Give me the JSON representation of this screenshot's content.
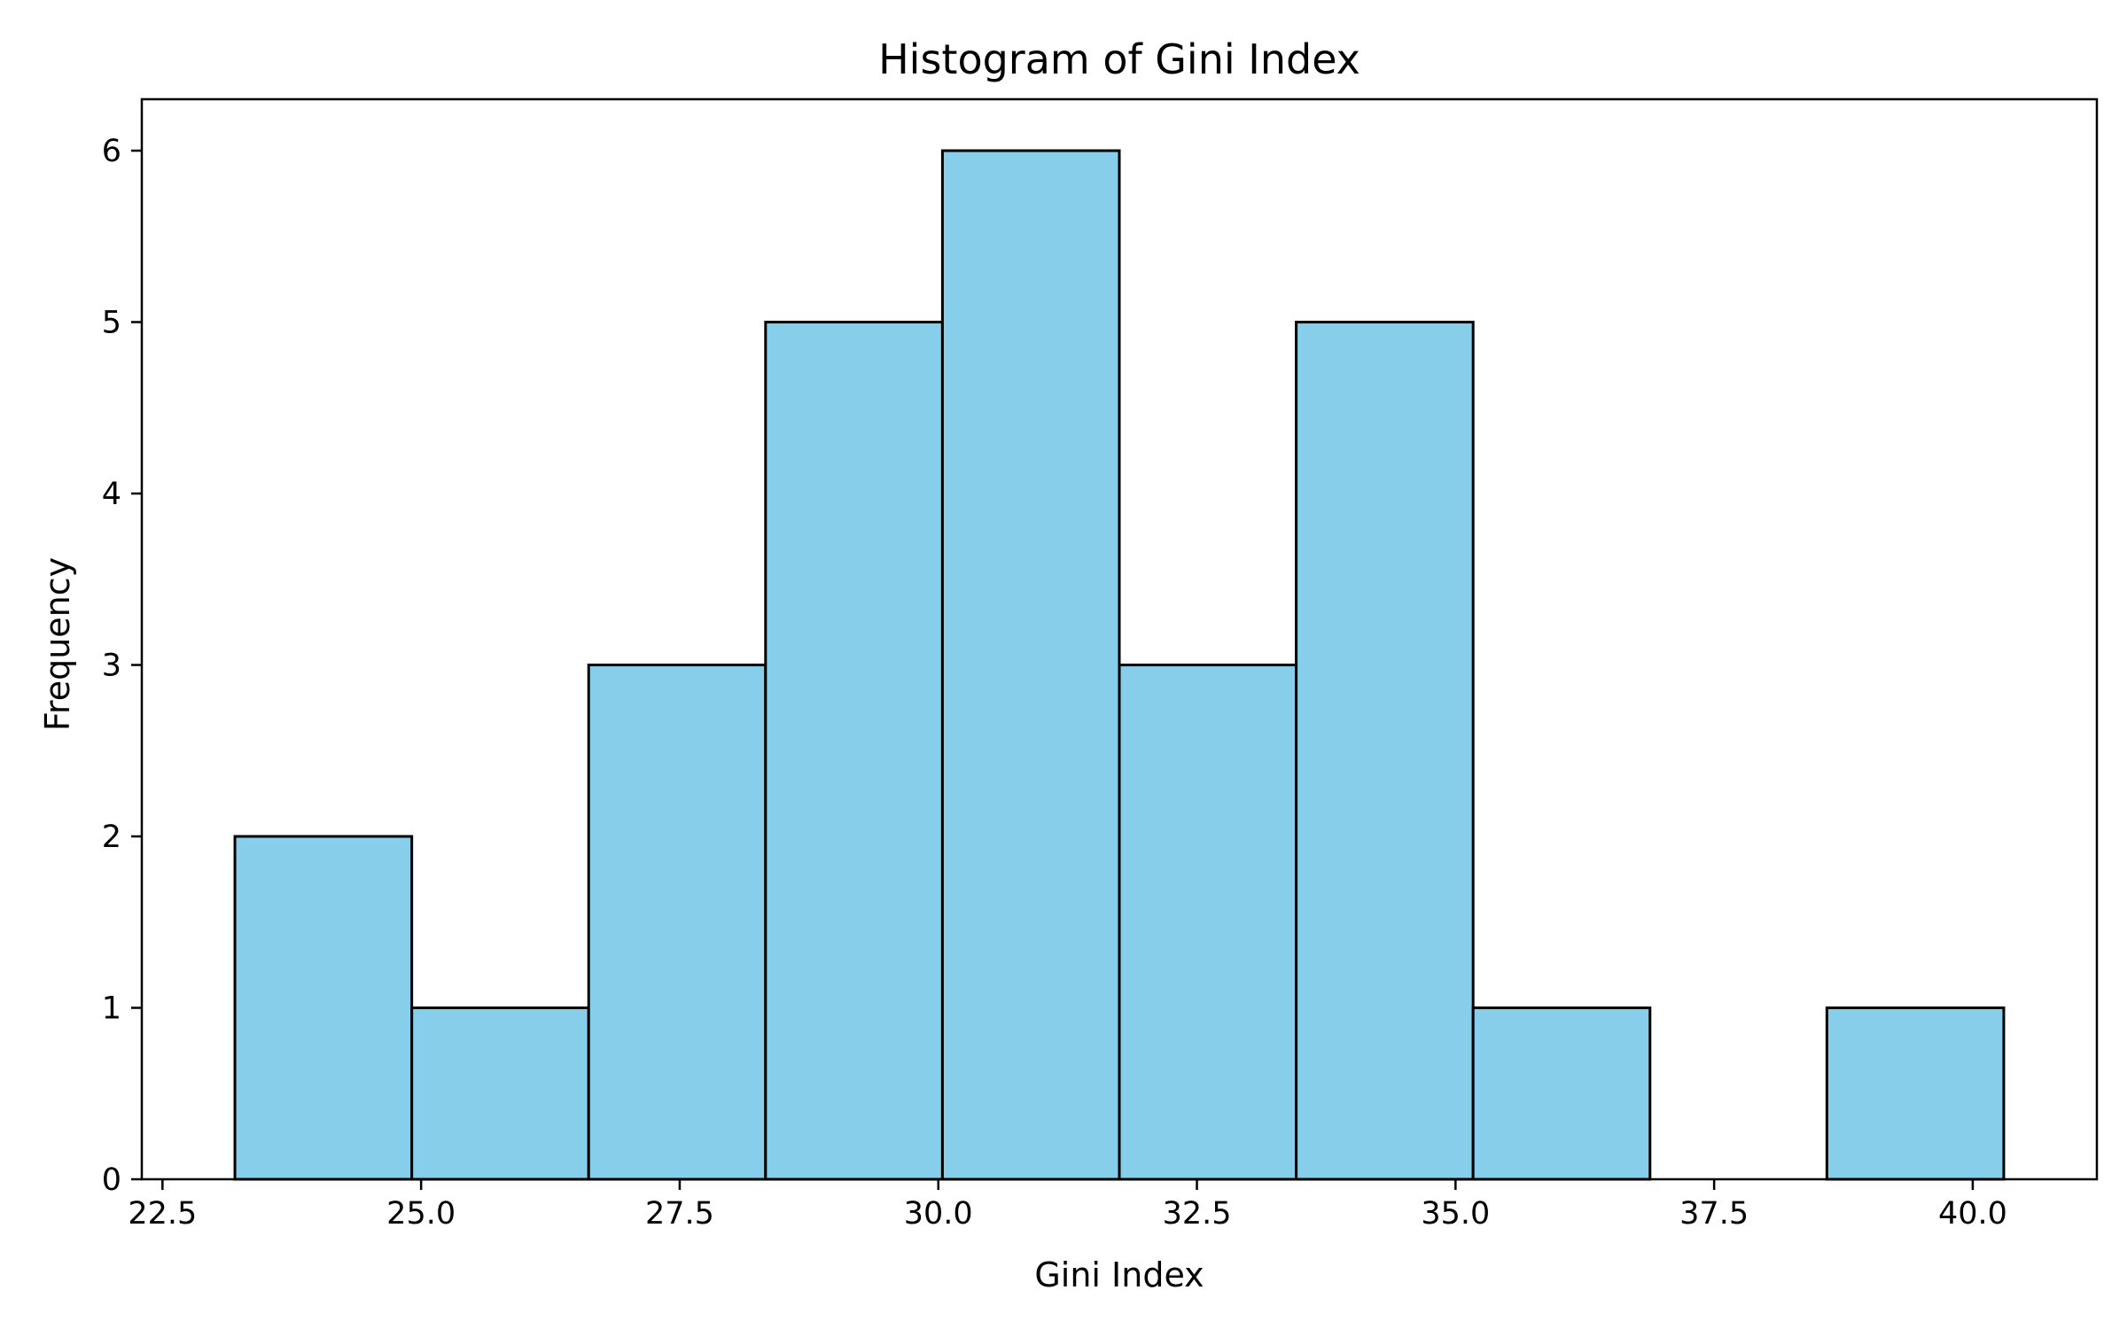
{
  "chart_data": {
    "type": "histogram",
    "title": "Histogram of Gini Index",
    "xlabel": "Gini Index",
    "ylabel": "Frequency",
    "xlim": [
      22.3,
      41.2
    ],
    "ylim": [
      0,
      6.3
    ],
    "bin_edges": [
      23.2,
      24.91,
      26.62,
      28.33,
      30.04,
      31.75,
      33.46,
      35.17,
      36.88,
      38.59,
      40.3
    ],
    "counts": [
      2,
      1,
      3,
      5,
      6,
      3,
      5,
      1,
      0,
      1
    ],
    "xticks": [
      22.5,
      25.0,
      27.5,
      30.0,
      32.5,
      35.0,
      37.5,
      40.0
    ],
    "xtick_labels": [
      "22.5",
      "25.0",
      "27.5",
      "30.0",
      "32.5",
      "35.0",
      "37.5",
      "40.0"
    ],
    "yticks": [
      0,
      1,
      2,
      3,
      4,
      5,
      6
    ],
    "ytick_labels": [
      "0",
      "1",
      "2",
      "3",
      "4",
      "5",
      "6"
    ],
    "colors": {
      "bar_fill": "#87ceeb",
      "bar_edge": "#000000",
      "axis": "#000000",
      "text": "#000000",
      "background": "#ffffff"
    },
    "grid": false,
    "legend": null
  }
}
